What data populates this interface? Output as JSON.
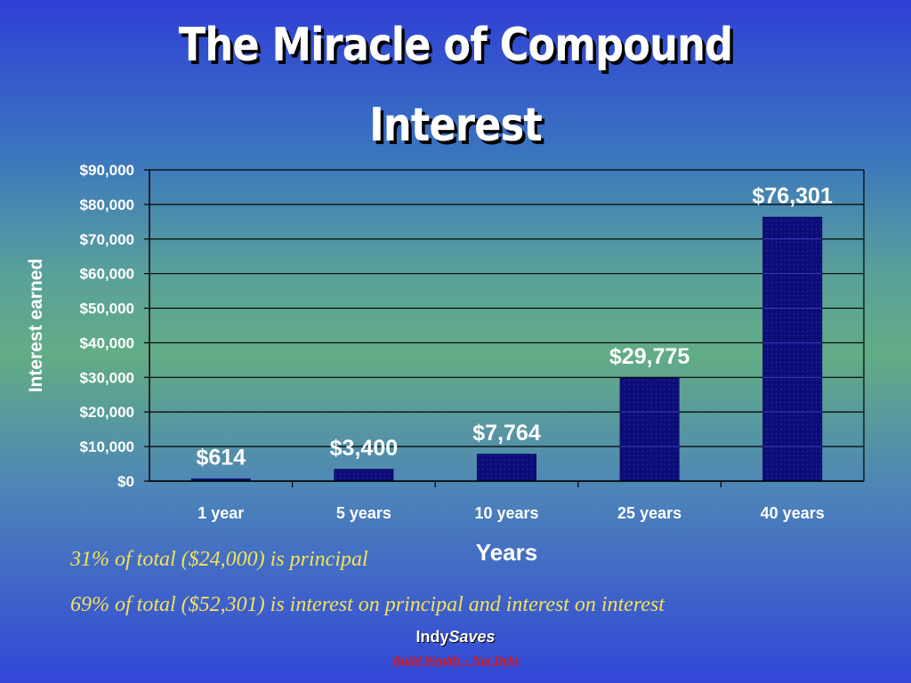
{
  "chart_data": {
    "type": "bar",
    "title": "The Miracle of Compound Interest",
    "title_lines": [
      "The Miracle of Compound",
      "Interest"
    ],
    "xlabel": "Years",
    "ylabel": "Interest earned",
    "categories": [
      "1 year",
      "5 years",
      "10 years",
      "25 years",
      "40 years"
    ],
    "values": [
      614,
      3400,
      7764,
      29775,
      76301
    ],
    "data_labels": [
      "$614",
      "$3,400",
      "$7,764",
      "$29,775",
      "$76,301"
    ],
    "ylim": [
      0,
      90000
    ],
    "yticks": [
      0,
      10000,
      20000,
      30000,
      40000,
      50000,
      60000,
      70000,
      80000,
      90000
    ],
    "ytick_labels": [
      "$0",
      "$10,000",
      "$20,000",
      "$30,000",
      "$40,000",
      "$50,000",
      "$60,000",
      "$70,000",
      "$80,000",
      "$90,000"
    ],
    "grid": true,
    "legend": "none"
  },
  "notes": {
    "principal": "31% of total ($24,000) is principal",
    "interest": "69% of total ($52,301) is interest on principal and interest on interest"
  },
  "footer": {
    "brand_plain": "Indy",
    "brand_italic": "Saves",
    "tagline": "Build Wealth – Not Debt"
  },
  "colors": {
    "bar_fill": "#0d0d7a",
    "text": "#ffffff",
    "note_text": "#f2e35a",
    "tagline": "#d81818"
  }
}
